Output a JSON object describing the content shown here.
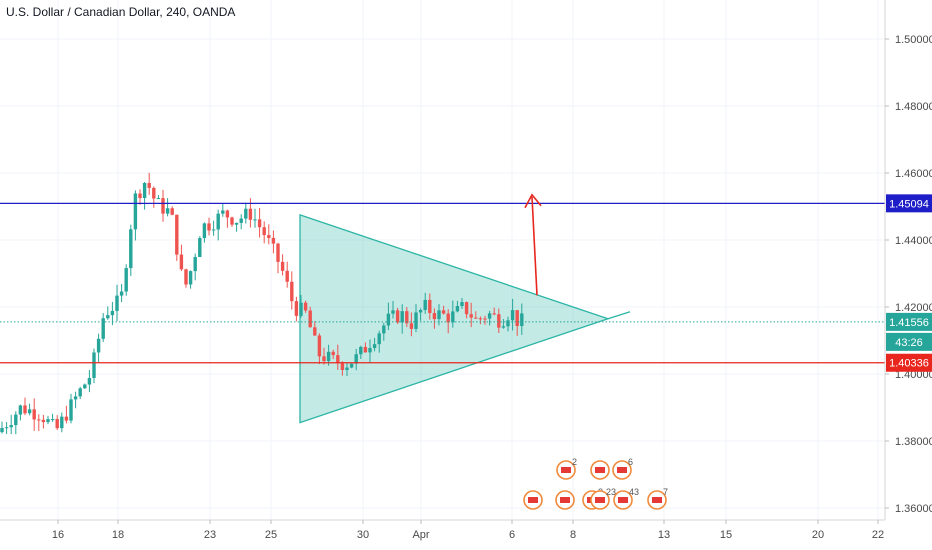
{
  "chart_data": {
    "type": "candlestick",
    "title": "U.S. Dollar / Canadian Dollar, 240, OANDA",
    "y_ticks": [
      "1.50000",
      "1.48000",
      "1.46000",
      "1.44000",
      "1.42000",
      "1.40000",
      "1.38000",
      "1.36000"
    ],
    "y_tick_values": [
      1.5,
      1.48,
      1.46,
      1.44,
      1.42,
      1.4,
      1.38,
      1.36
    ],
    "x_ticks": [
      "16",
      "18",
      "23",
      "25",
      "30",
      "Apr",
      "6",
      "8",
      "13",
      "15",
      "20",
      "22"
    ],
    "horizontal_lines": [
      {
        "label": "1.45094",
        "value": 1.45094,
        "color": "#1e1ec8"
      },
      {
        "label": "1.40336",
        "value": 1.40336,
        "color": "#e8261e"
      }
    ],
    "current_price": {
      "label": "1.41556",
      "value": 1.41556,
      "countdown": "43:26",
      "color": "#26a69a"
    },
    "triangle": {
      "upper": [
        [
          "Mar 26",
          1.4475
        ],
        [
          "Apr 8",
          1.4165
        ]
      ],
      "lower": [
        [
          "Mar 26",
          1.3855
        ],
        [
          "Apr 8",
          1.4165
        ]
      ],
      "color": "#2bb5a5"
    },
    "arrow": {
      "from": [
        "Apr 6",
        1.4235
      ],
      "to": [
        "Apr 6",
        1.4535
      ],
      "color": "#e8261e"
    },
    "candle_colors": {
      "up": "#26a69a",
      "down": "#ef5350"
    },
    "events": [
      {
        "count": "2"
      },
      {
        "count": ""
      },
      {
        "count": "6"
      },
      {
        "count": ""
      },
      {
        "count": ""
      },
      {
        "count": "2"
      },
      {
        "count": "23"
      },
      {
        "count": "43"
      },
      {
        "count": "7"
      }
    ]
  }
}
